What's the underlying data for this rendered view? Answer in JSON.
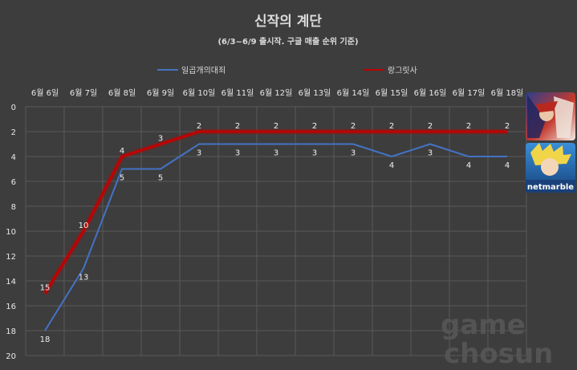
{
  "chart_data": {
    "type": "line",
    "title": "신작의 계단",
    "subtitle": "(6/3~6/9 출시작. 구글 매출 순위 기준)",
    "categories": [
      "6월 6일",
      "6월 7일",
      "6월 8일",
      "6월 9일",
      "6월 10일",
      "6월 11일",
      "6월 12일",
      "6월 13일",
      "6월 14일",
      "6월 15일",
      "6월 16일",
      "6월 17일",
      "6월 18일"
    ],
    "series": [
      {
        "name": "일곱개의대죄",
        "color": "#4472c4",
        "values": [
          18,
          13,
          5,
          5,
          3,
          3,
          3,
          3,
          3,
          4,
          3,
          4,
          4
        ]
      },
      {
        "name": "랑그릿사",
        "color": "#c00000",
        "values": [
          15,
          10,
          4,
          3,
          2,
          2,
          2,
          2,
          2,
          2,
          2,
          2,
          2
        ]
      }
    ],
    "ylim": [
      0,
      20
    ],
    "y_inverted": true,
    "yticks": [
      "0",
      "2",
      "4",
      "6",
      "8",
      "10",
      "12",
      "14",
      "16",
      "18",
      "20"
    ],
    "grid": true,
    "legend_position": "top",
    "xaxis_position": "top"
  },
  "icons": [
    {
      "name": "langrisser-game-icon",
      "colors": [
        "#3b4fa0",
        "#c43a2e",
        "#e8e0d8"
      ]
    },
    {
      "name": "seven-deadly-sins-game-icon",
      "colors": [
        "#1e6fb8",
        "#f0d040",
        "#ffffff"
      ],
      "caption": "netmarble"
    }
  ],
  "watermark": {
    "line1": "game",
    "line2": "chosun"
  }
}
